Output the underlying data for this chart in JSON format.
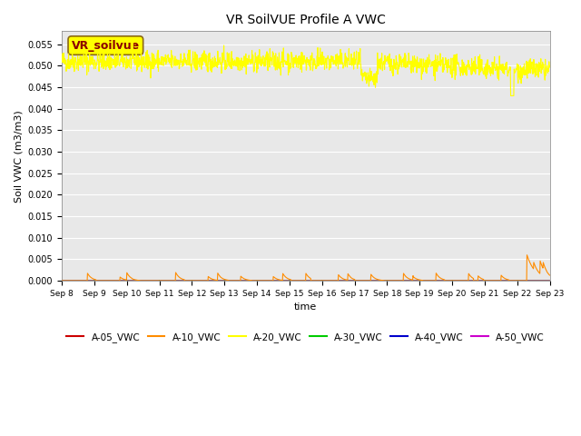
{
  "title": "VR SoilVUE Profile A VWC",
  "xlabel": "time",
  "ylabel": "Soil VWC (m3/m3)",
  "ylim": [
    0.0,
    0.058
  ],
  "yticks": [
    0.0,
    0.005,
    0.01,
    0.015,
    0.02,
    0.025,
    0.03,
    0.035,
    0.04,
    0.045,
    0.05,
    0.055
  ],
  "bg_color": "#e8e8e8",
  "series": {
    "A-05_VWC": {
      "color": "#cc0000",
      "label": "A-05_VWC"
    },
    "A-10_VWC": {
      "color": "#ff8c00",
      "label": "A-10_VWC"
    },
    "A-20_VWC": {
      "color": "#ffff00",
      "label": "A-20_VWC"
    },
    "A-30_VWC": {
      "color": "#00cc00",
      "label": "A-30_VWC"
    },
    "A-40_VWC": {
      "color": "#0000cc",
      "label": "A-40_VWC"
    },
    "A-50_VWC": {
      "color": "#cc00cc",
      "label": "A-50_VWC"
    }
  },
  "annotation_box": {
    "text": "VR_soilvue",
    "fontsize": 9,
    "bg": "#ffff00",
    "border_color": "#8b6914"
  },
  "start_day": 8,
  "end_day": 23,
  "seed": 42
}
